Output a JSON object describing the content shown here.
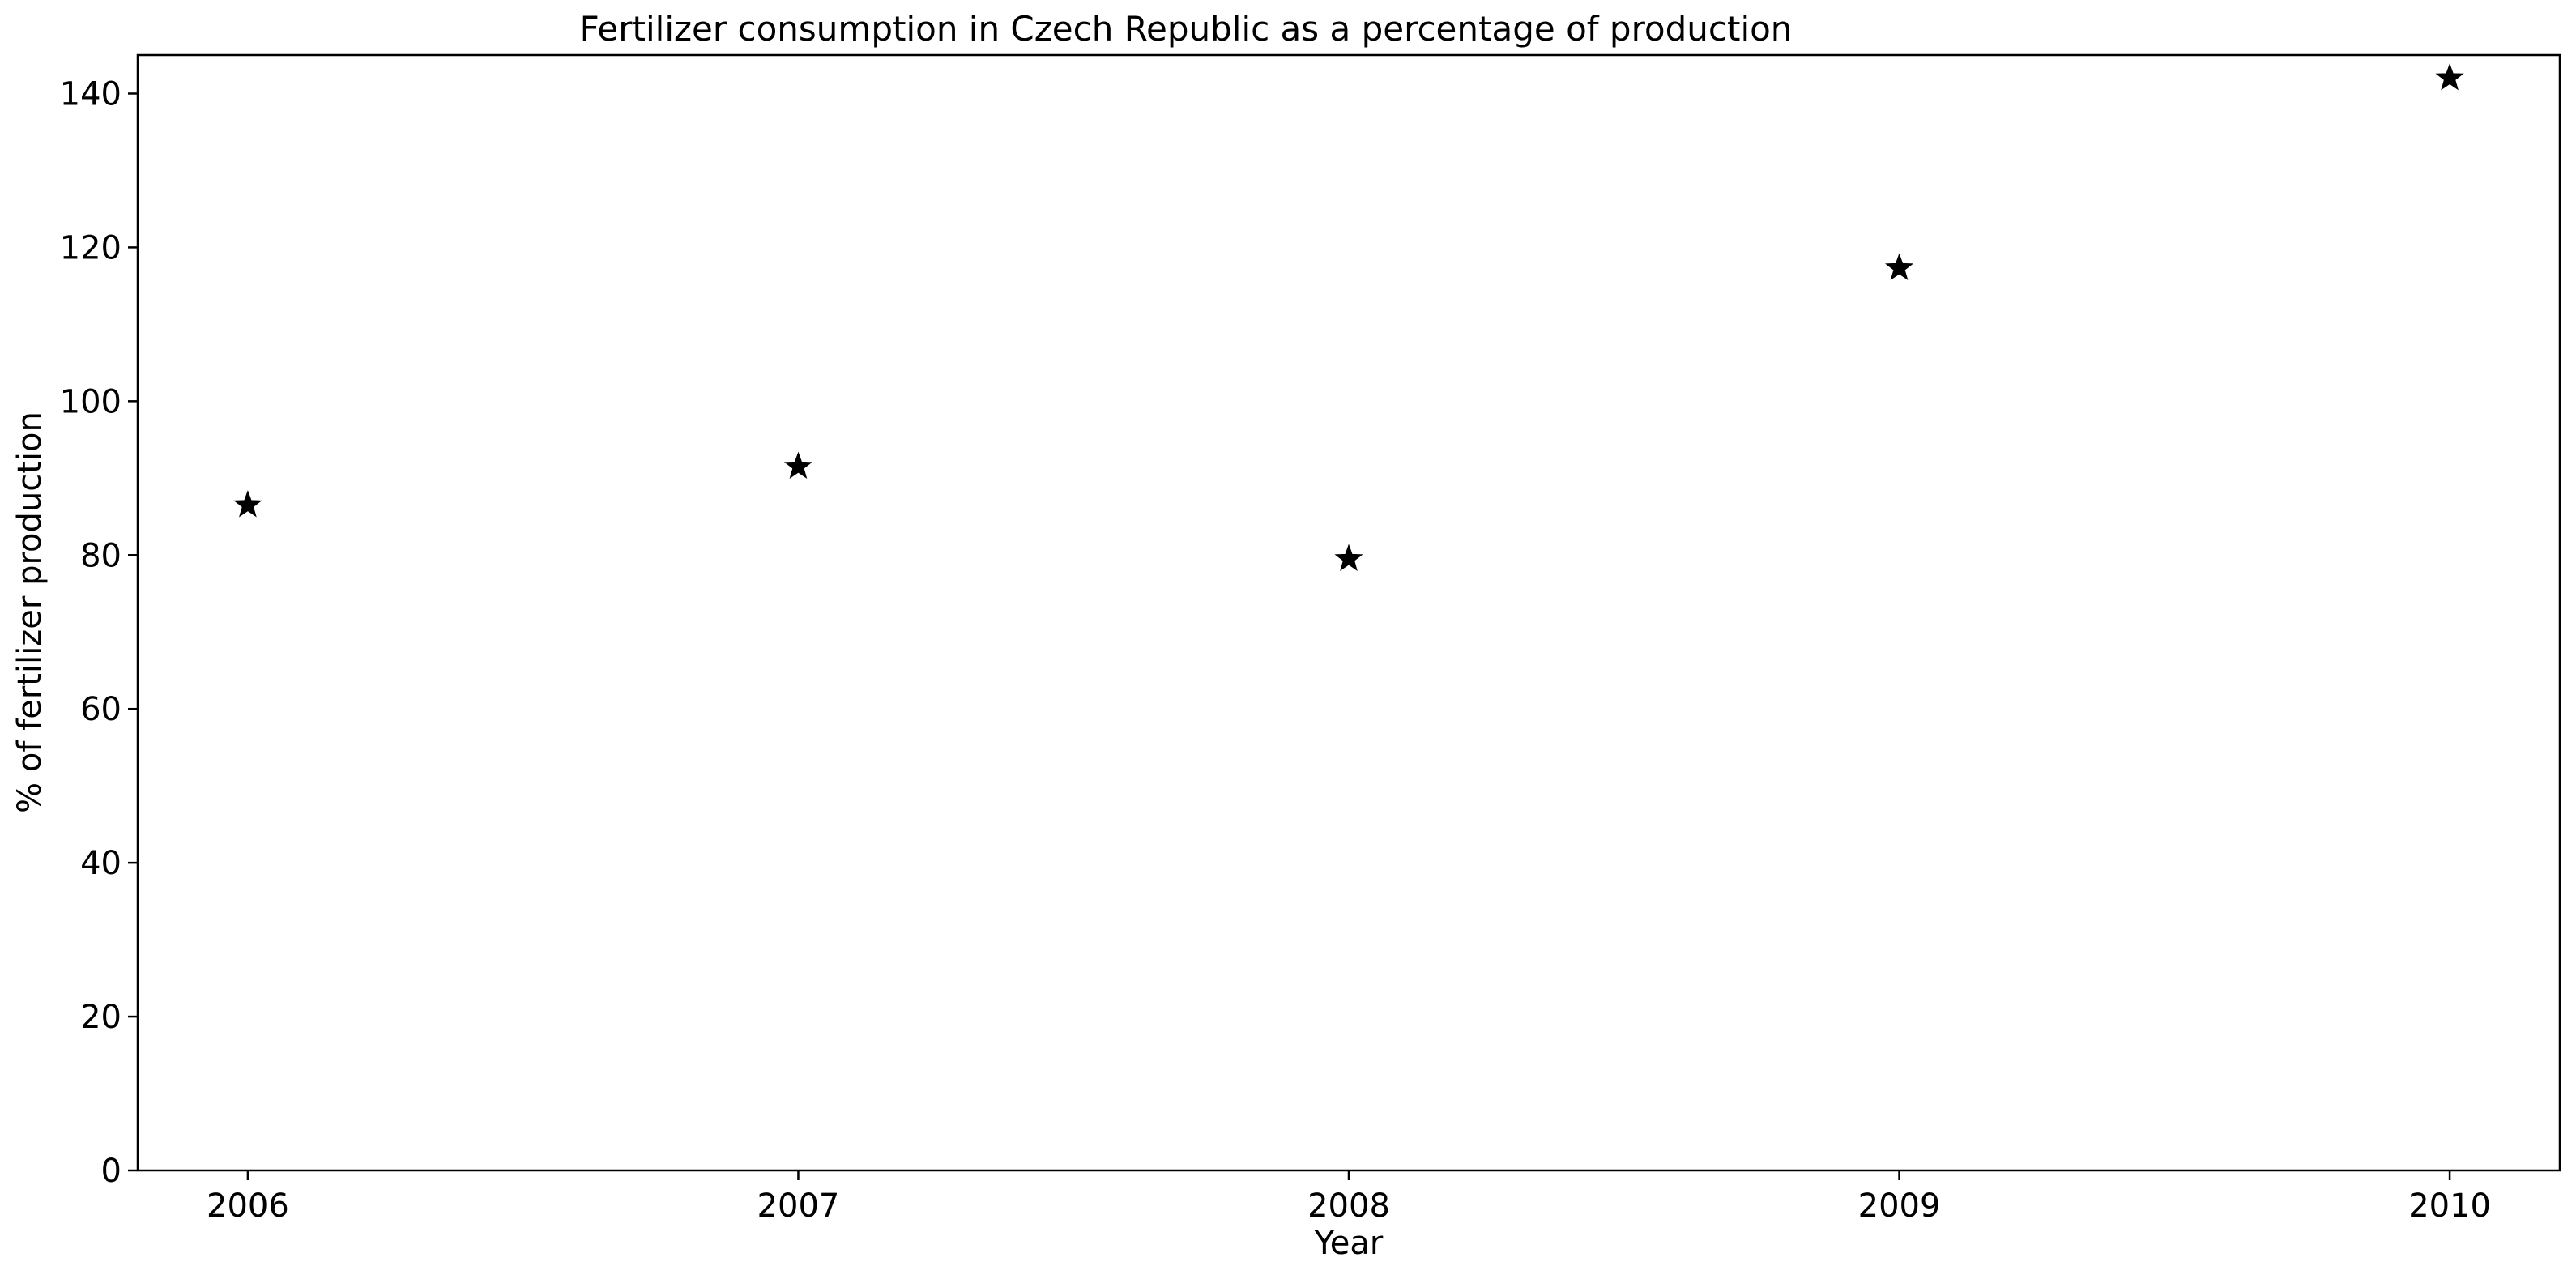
{
  "chart_data": {
    "type": "scatter",
    "title": "Fertilizer consumption in Czech Republic as a percentage of production",
    "xlabel": "Year",
    "ylabel": "% of fertilizer production",
    "x": [
      2006,
      2007,
      2008,
      2009,
      2010
    ],
    "x_tick_labels": [
      "2006",
      "2007",
      "2008",
      "2009",
      "2010"
    ],
    "series": [
      {
        "values": [
          86.5,
          91.5,
          79.5,
          117.3,
          142.0
        ],
        "marker": "star",
        "color": "#000000"
      }
    ],
    "ylim": [
      0,
      145
    ],
    "xlim": [
      2005.8,
      2010.2
    ],
    "y_ticks": [
      0,
      20,
      40,
      60,
      80,
      100,
      120,
      140
    ],
    "y_tick_labels": [
      "0",
      "20",
      "40",
      "60",
      "80",
      "100",
      "120",
      "140"
    ],
    "grid": false,
    "legend": false
  }
}
